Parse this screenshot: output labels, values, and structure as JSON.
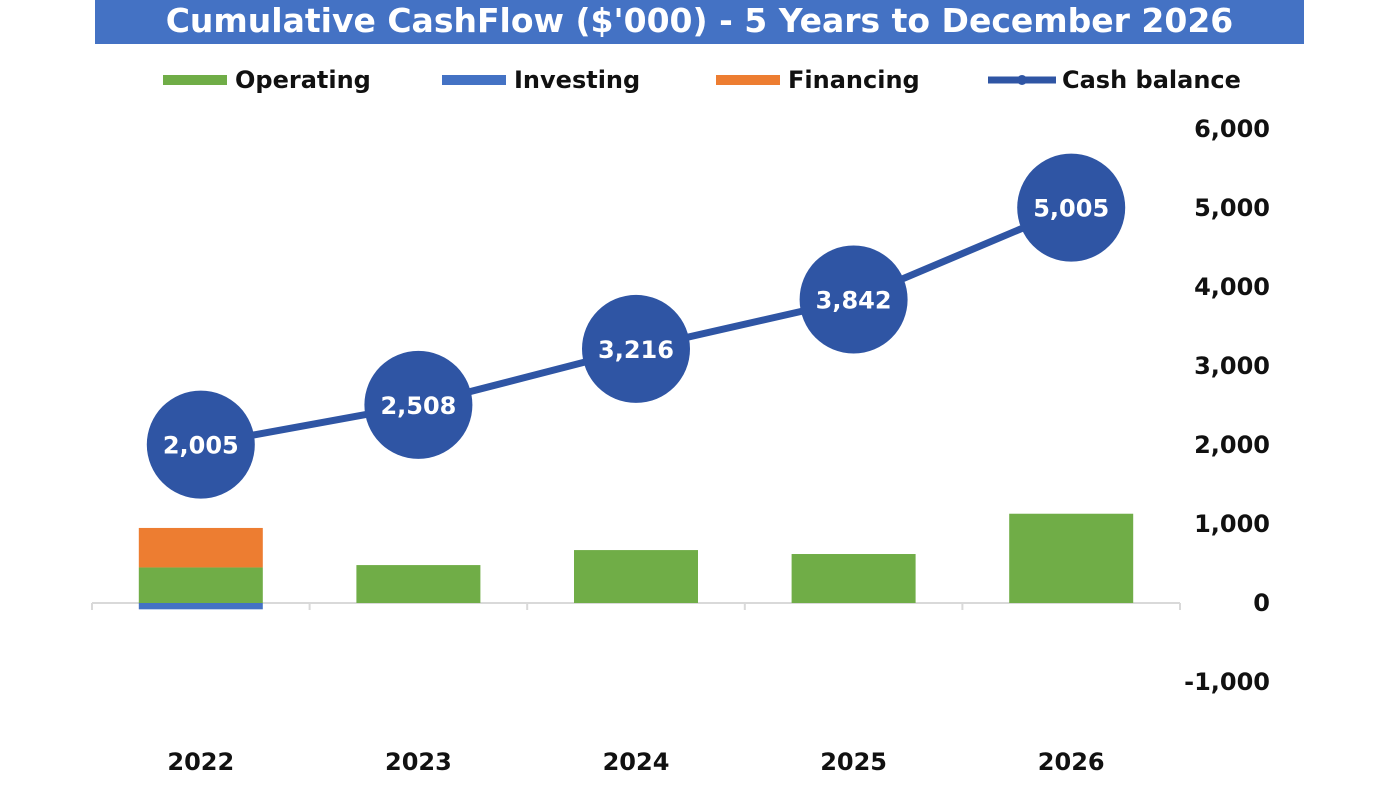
{
  "title": "Cumulative CashFlow ($'000) - 5 Years to December 2026",
  "legend": [
    {
      "label": "Operating",
      "color": "#70AD47",
      "kind": "bar"
    },
    {
      "label": "Investing",
      "color": "#4472C4",
      "kind": "bar"
    },
    {
      "label": "Financing",
      "color": "#ED7D31",
      "kind": "bar"
    },
    {
      "label": "Cash balance",
      "color": "#2F55A4",
      "kind": "line"
    }
  ],
  "chart_data": {
    "type": "bar",
    "title": "Cumulative CashFlow ($'000) - 5 Years to December 2026",
    "categories": [
      "2022",
      "2023",
      "2024",
      "2025",
      "2026"
    ],
    "series": [
      {
        "name": "Operating",
        "type": "bar",
        "stack": "cash",
        "color": "#70AD47",
        "values": [
          450,
          480,
          670,
          620,
          1130
        ]
      },
      {
        "name": "Investing",
        "type": "bar",
        "stack": "cash",
        "color": "#4472C4",
        "values": [
          -80,
          0,
          0,
          0,
          0
        ]
      },
      {
        "name": "Financing",
        "type": "bar",
        "stack": "cash",
        "color": "#ED7D31",
        "values": [
          500,
          0,
          0,
          0,
          0
        ]
      },
      {
        "name": "Cash balance",
        "type": "line",
        "color": "#2F55A4",
        "values": [
          2005,
          2508,
          3216,
          3842,
          5005
        ]
      }
    ],
    "data_labels": [
      "2,005",
      "2,508",
      "3,216",
      "3,842",
      "5,005"
    ],
    "y_ticks": [
      "-1,000",
      "0",
      "1,000",
      "2,000",
      "3,000",
      "4,000",
      "5,000",
      "6,000"
    ],
    "ylim": [
      -1000,
      6000
    ],
    "y_axis_position": "right",
    "legend_position": "top",
    "grid": false,
    "xlabel": "",
    "ylabel": ""
  }
}
